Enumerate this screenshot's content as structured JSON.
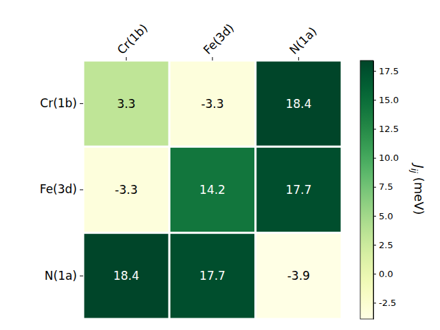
{
  "chart_data": {
    "type": "heatmap",
    "x": [
      "Cr(1b)",
      "Fe(3d)",
      "N(1a)"
    ],
    "y": [
      "Cr(1b)",
      "Fe(3d)",
      "N(1a)"
    ],
    "values": [
      [
        3.3,
        -3.3,
        18.4
      ],
      [
        -3.3,
        14.2,
        17.7
      ],
      [
        18.4,
        17.7,
        -3.9
      ]
    ],
    "color": "YlGn",
    "data_labels": true,
    "colorbar": {
      "label": "Jij (meV)",
      "range": [
        -3.9,
        18.4
      ],
      "ticks": [
        -2.5,
        {
          "value": 0,
          "label": "0.0"
        },
        2.5,
        {
          "value": 5,
          "label": "5.0"
        },
        7.5,
        {
          "value": 10,
          "label": "10.0"
        },
        12.5,
        {
          "value": 15,
          "label": "15.0"
        },
        17.5
      ]
    }
  }
}
